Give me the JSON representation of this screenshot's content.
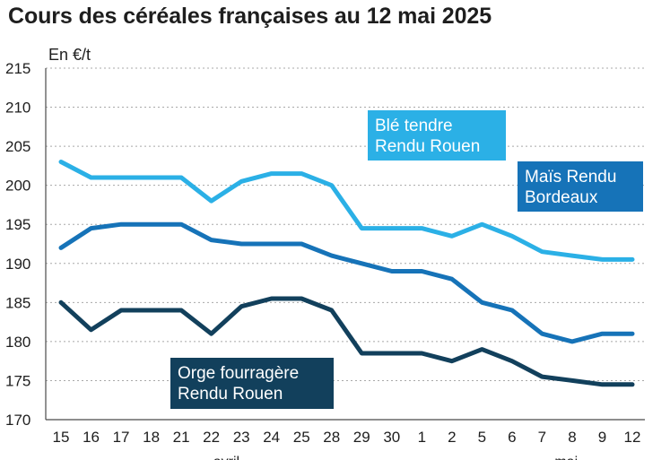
{
  "chart_data": {
    "type": "line",
    "title": "Cours des céréales françaises au 12 mai 2025",
    "ylabel": "En €/t",
    "xlabel": "",
    "ylim": [
      170,
      215
    ],
    "yticks": [
      215,
      210,
      205,
      200,
      195,
      190,
      185,
      180,
      175,
      170
    ],
    "grid": true,
    "categories": [
      "15",
      "16",
      "17",
      "18",
      "21",
      "22",
      "23",
      "24",
      "25",
      "28",
      "29",
      "30",
      "1",
      "2",
      "5",
      "6",
      "7",
      "8",
      "9",
      "12"
    ],
    "months": [
      {
        "label": "avril",
        "at_index": 5.5
      },
      {
        "label": "mai",
        "at_index": 16.8
      }
    ],
    "series": [
      {
        "name": "Blé tendre Rendu Rouen",
        "label_lines": [
          "Blé tendre",
          "Rendu Rouen"
        ],
        "color": "#2bb0e6",
        "values": [
          203,
          201,
          201,
          201,
          201,
          198,
          200.5,
          201.5,
          201.5,
          200,
          194.5,
          194.5,
          194.5,
          193.5,
          195,
          193.5,
          191.5,
          191,
          190.5,
          190.5
        ]
      },
      {
        "name": "Maïs Rendu Bordeaux",
        "label_lines": [
          "Maïs Rendu",
          "Bordeaux"
        ],
        "color": "#1673b8",
        "values": [
          192,
          194.5,
          195,
          195,
          195,
          193,
          192.5,
          192.5,
          192.5,
          191,
          190,
          189,
          189,
          188,
          185,
          184,
          181,
          180,
          181,
          181
        ]
      },
      {
        "name": "Orge fourragère Rendu Rouen",
        "label_lines": [
          "Orge fourragère",
          "Rendu Rouen"
        ],
        "color": "#12405c",
        "values": [
          185,
          181.5,
          184,
          184,
          184,
          181,
          184.5,
          185.5,
          185.5,
          184,
          178.5,
          178.5,
          178.5,
          177.5,
          179,
          177.5,
          175.5,
          175,
          174.5,
          174.5
        ]
      }
    ]
  }
}
